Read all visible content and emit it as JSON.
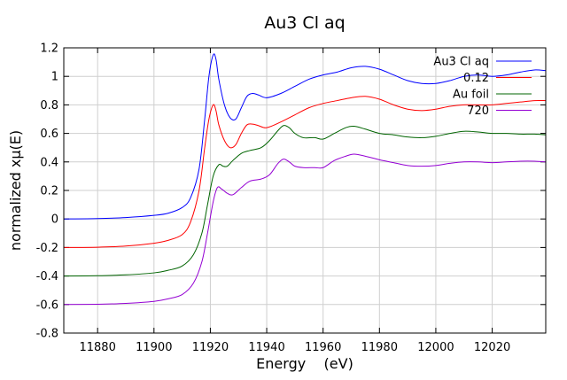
{
  "chart_data": {
    "type": "line",
    "title": "Au3 Cl aq",
    "xlabel": "Energy    (eV)",
    "ylabel": "normalized xμ(E)",
    "xlim": [
      11868,
      12039
    ],
    "ylim": [
      -0.8,
      1.2
    ],
    "xticks": [
      11880,
      11900,
      11920,
      11940,
      11960,
      11980,
      12000,
      12020
    ],
    "yticks": [
      -0.8,
      -0.6,
      -0.4,
      -0.2,
      0,
      0.2,
      0.4,
      0.6,
      0.8,
      1,
      1.2
    ],
    "ytick_labels": [
      "-0.8",
      "-0.6",
      "-0.4",
      "-0.2",
      "0",
      "0.2",
      "0.4",
      "0.6",
      "0.8",
      "1",
      "1.2"
    ],
    "grid": true,
    "legend_position": "top-right",
    "series": [
      {
        "name": "Au3 Cl aq",
        "color": "#0000ff",
        "x": [
          11868,
          11880,
          11890,
          11900,
          11905,
          11910,
          11913,
          11916,
          11918,
          11919.5,
          11921,
          11922,
          11923,
          11925,
          11927,
          11929,
          11931,
          11933,
          11935,
          11937,
          11940,
          11945,
          11950,
          11955,
          11960,
          11965,
          11970,
          11975,
          11980,
          11985,
          11990,
          11995,
          12000,
          12005,
          12010,
          12015,
          12020,
          12025,
          12030,
          12035,
          12039
        ],
        "y": [
          0.0,
          0.003,
          0.01,
          0.025,
          0.04,
          0.08,
          0.15,
          0.35,
          0.7,
          1.0,
          1.15,
          1.12,
          0.98,
          0.8,
          0.71,
          0.7,
          0.78,
          0.86,
          0.88,
          0.87,
          0.85,
          0.88,
          0.93,
          0.98,
          1.01,
          1.03,
          1.06,
          1.07,
          1.05,
          1.01,
          0.97,
          0.95,
          0.95,
          0.97,
          1.0,
          1.01,
          1.0,
          1.01,
          1.03,
          1.045,
          1.04
        ]
      },
      {
        "name": "0.12",
        "color": "#ff0000",
        "x": [
          11868,
          11880,
          11890,
          11900,
          11905,
          11910,
          11913,
          11916,
          11918,
          11919.5,
          11921,
          11922,
          11923,
          11925,
          11927,
          11929,
          11931,
          11933,
          11935,
          11937,
          11940,
          11945,
          11950,
          11955,
          11960,
          11965,
          11970,
          11975,
          11980,
          11985,
          11990,
          11995,
          12000,
          12005,
          12010,
          12015,
          12020,
          12025,
          12030,
          12035,
          12039
        ],
        "y": [
          -0.2,
          -0.198,
          -0.19,
          -0.17,
          -0.15,
          -0.11,
          -0.02,
          0.2,
          0.5,
          0.7,
          0.8,
          0.76,
          0.66,
          0.55,
          0.5,
          0.52,
          0.6,
          0.66,
          0.665,
          0.655,
          0.64,
          0.68,
          0.73,
          0.78,
          0.81,
          0.83,
          0.85,
          0.86,
          0.84,
          0.8,
          0.77,
          0.76,
          0.77,
          0.79,
          0.8,
          0.8,
          0.8,
          0.81,
          0.82,
          0.83,
          0.83
        ]
      },
      {
        "name": "Au foil",
        "color": "#006400",
        "x": [
          11868,
          11880,
          11890,
          11900,
          11905,
          11910,
          11914,
          11917,
          11919,
          11921,
          11923,
          11924.5,
          11926,
          11928,
          11931,
          11934,
          11938,
          11941,
          11944,
          11946,
          11948,
          11950,
          11953,
          11957,
          11960,
          11964,
          11968,
          11971,
          11975,
          11980,
          11985,
          11990,
          11995,
          12000,
          12005,
          12010,
          12015,
          12020,
          12025,
          12030,
          12035,
          12039
        ],
        "y": [
          -0.4,
          -0.398,
          -0.392,
          -0.378,
          -0.36,
          -0.33,
          -0.25,
          -0.1,
          0.1,
          0.3,
          0.38,
          0.37,
          0.37,
          0.41,
          0.46,
          0.48,
          0.5,
          0.55,
          0.62,
          0.655,
          0.64,
          0.6,
          0.57,
          0.57,
          0.56,
          0.6,
          0.64,
          0.65,
          0.63,
          0.6,
          0.59,
          0.575,
          0.57,
          0.58,
          0.6,
          0.615,
          0.61,
          0.6,
          0.6,
          0.595,
          0.595,
          0.59
        ]
      },
      {
        "name": "720",
        "color": "#9400d3",
        "x": [
          11868,
          11880,
          11890,
          11900,
          11905,
          11910,
          11914,
          11917,
          11919,
          11921,
          11922.5,
          11924,
          11926,
          11928,
          11931,
          11934,
          11938,
          11941,
          11944,
          11946,
          11948,
          11950,
          11953,
          11957,
          11960,
          11964,
          11968,
          11971,
          11975,
          11980,
          11985,
          11990,
          11995,
          12000,
          12005,
          12010,
          12015,
          12020,
          12025,
          12030,
          12035,
          12039
        ],
        "y": [
          -0.6,
          -0.598,
          -0.592,
          -0.578,
          -0.56,
          -0.53,
          -0.45,
          -0.3,
          -0.1,
          0.12,
          0.22,
          0.21,
          0.18,
          0.17,
          0.22,
          0.265,
          0.28,
          0.31,
          0.39,
          0.42,
          0.4,
          0.37,
          0.36,
          0.36,
          0.36,
          0.41,
          0.44,
          0.455,
          0.44,
          0.415,
          0.395,
          0.375,
          0.37,
          0.375,
          0.39,
          0.4,
          0.4,
          0.395,
          0.4,
          0.405,
          0.405,
          0.4
        ]
      }
    ]
  }
}
